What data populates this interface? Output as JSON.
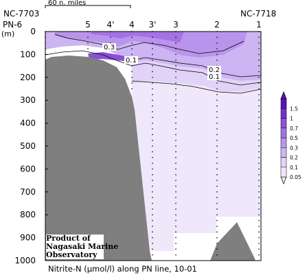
{
  "chart_data": {
    "type": "contour_section",
    "title": "Nitrite-N (μmol/l) along PN line, 10-01",
    "ylabel": "(m)",
    "ylim": [
      0,
      1000
    ],
    "yticks": [
      0,
      100,
      200,
      300,
      400,
      500,
      600,
      700,
      800,
      900,
      1000
    ],
    "x_ends": {
      "left_cruise": "NC-7703",
      "left_station": "PN-6",
      "right_cruise": "NC-7718"
    },
    "stations": [
      "PN-6",
      "5",
      "4'",
      "4",
      "3'",
      "3",
      "2",
      "1"
    ],
    "scale_bar_label": "60 n. miles",
    "contour_labels": [
      "0.3",
      "0.1",
      "0.2",
      "0.1"
    ],
    "colorbar": {
      "levels": [
        0.05,
        0.1,
        0.2,
        0.3,
        0.5,
        0.7,
        1,
        1.5
      ],
      "labels": [
        "0.05",
        "0.1",
        "0.2",
        "0.3",
        "0.5",
        "0.7",
        "1",
        "1.5"
      ],
      "colors": [
        "#efe8fb",
        "#e1d3f7",
        "#cdb4f2",
        "#b994ec",
        "#a472e4",
        "#8d4fd9",
        "#7630cc",
        "#5c12b8"
      ]
    },
    "colors": {
      "bathymetry": "#7f7f7f",
      "frame": "#000000"
    },
    "credit": [
      "Product of",
      "Nagasaki Marine",
      "Observatory"
    ]
  }
}
